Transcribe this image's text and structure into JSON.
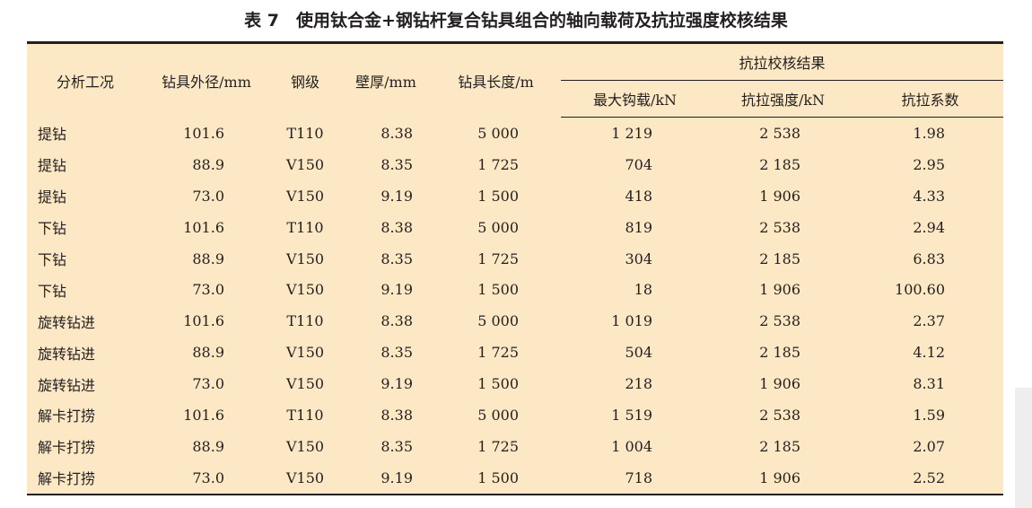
{
  "title": "表 7　使用钛合金+钢钻杆复合钻具组合的轴向载荷及抗拉强度校核结果",
  "headers": {
    "case": "分析工况",
    "od": "钻具外径/mm",
    "grade": "钢级",
    "wall": "壁厚/mm",
    "length": "钻具长度/m",
    "group": "抗拉校核结果",
    "hook": "最大钩载/kN",
    "strength": "抗拉强度/kN",
    "factor": "抗拉系数"
  },
  "rows": [
    [
      "提钻",
      "101.6",
      "T110",
      "8.38",
      "5 000",
      "1 219",
      "2 538",
      "1.98"
    ],
    [
      "提钻",
      "88.9",
      "V150",
      "8.35",
      "1 725",
      "704",
      "2 185",
      "2.95"
    ],
    [
      "提钻",
      "73.0",
      "V150",
      "9.19",
      "1 500",
      "418",
      "1 906",
      "4.33"
    ],
    [
      "下钻",
      "101.6",
      "T110",
      "8.38",
      "5 000",
      "819",
      "2 538",
      "2.94"
    ],
    [
      "下钻",
      "88.9",
      "V150",
      "8.35",
      "1 725",
      "304",
      "2 185",
      "6.83"
    ],
    [
      "下钻",
      "73.0",
      "V150",
      "9.19",
      "1 500",
      "18",
      "1 906",
      "100.60"
    ],
    [
      "旋转钻进",
      "101.6",
      "T110",
      "8.38",
      "5 000",
      "1 019",
      "2 538",
      "2.37"
    ],
    [
      "旋转钻进",
      "88.9",
      "V150",
      "8.35",
      "1 725",
      "504",
      "2 185",
      "4.12"
    ],
    [
      "旋转钻进",
      "73.0",
      "V150",
      "9.19",
      "1 500",
      "218",
      "1 906",
      "8.31"
    ],
    [
      "解卡打捞",
      "101.6",
      "T110",
      "8.38",
      "5 000",
      "1 519",
      "2 538",
      "1.59"
    ],
    [
      "解卡打捞",
      "88.9",
      "V150",
      "8.35",
      "1 725",
      "1 004",
      "2 185",
      "2.07"
    ],
    [
      "解卡打捞",
      "73.0",
      "V150",
      "9.19",
      "1 500",
      "718",
      "1 906",
      "2.52"
    ]
  ]
}
